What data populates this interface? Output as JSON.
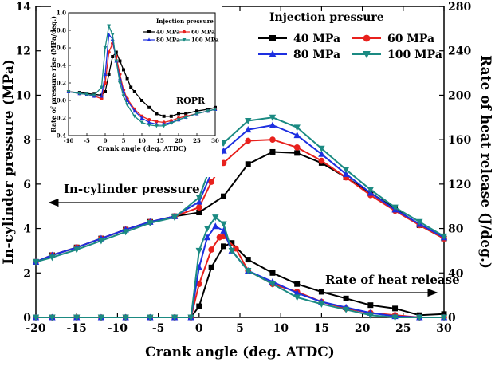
{
  "chart_data": [
    {
      "type": "line",
      "xlabel": "Crank angle (deg. ATDC)",
      "ylabel_left": "In-cylinder pressure (MPa)",
      "ylabel_right": "Rate of heat release (J/deg.)",
      "xlim": [
        -20,
        30
      ],
      "ylim_left": [
        0,
        14
      ],
      "ylim_right": [
        0,
        280
      ],
      "xticks": [
        "-20",
        "-15",
        "-10",
        "-5",
        "0",
        "5",
        "10",
        "15",
        "20",
        "25",
        "30"
      ],
      "yticks_left": [
        "0",
        "2",
        "4",
        "6",
        "8",
        "10",
        "12",
        "14"
      ],
      "yticks_right": [
        "0",
        "40",
        "80",
        "120",
        "160",
        "200",
        "240",
        "280"
      ],
      "legend_title": "Injection pressure",
      "legend_position": "top-right",
      "annotations": {
        "pressure": "In-cylinder pressure",
        "hrr": "Rate of heat release"
      },
      "grid": false,
      "pressure_series": [
        {
          "name": "40 MPa",
          "color": "#000000",
          "marker": "square",
          "x": [
            -20,
            -18,
            -15,
            -12,
            -9,
            -6,
            -3,
            0,
            3,
            6,
            9,
            12,
            15,
            18,
            21,
            24,
            27,
            30
          ],
          "y": [
            2.5,
            2.8,
            3.15,
            3.55,
            3.95,
            4.3,
            4.55,
            4.72,
            5.45,
            6.9,
            7.45,
            7.4,
            6.95,
            6.3,
            5.6,
            4.9,
            4.15,
            3.55
          ]
        },
        {
          "name": "60 MPa",
          "color": "#e8211d",
          "marker": "circle",
          "x": [
            -20,
            -18,
            -15,
            -12,
            -9,
            -6,
            -3,
            0,
            1.5,
            3,
            6,
            9,
            12,
            15,
            18,
            21,
            24,
            27,
            30
          ],
          "y": [
            2.5,
            2.8,
            3.15,
            3.55,
            3.95,
            4.3,
            4.55,
            4.95,
            6.1,
            6.95,
            7.95,
            8.0,
            7.65,
            7.05,
            6.3,
            5.5,
            4.8,
            4.15,
            3.55
          ]
        },
        {
          "name": "80 MPa",
          "color": "#1d2fe0",
          "marker": "triangle-up",
          "x": [
            -20,
            -18,
            -15,
            -12,
            -9,
            -6,
            -3,
            0,
            1.5,
            3,
            6,
            9,
            12,
            15,
            18,
            21,
            24,
            27,
            30
          ],
          "y": [
            2.5,
            2.8,
            3.15,
            3.55,
            3.95,
            4.3,
            4.55,
            5.2,
            6.5,
            7.5,
            8.45,
            8.65,
            8.2,
            7.35,
            6.45,
            5.6,
            4.85,
            4.2,
            3.6
          ]
        },
        {
          "name": "100 MPa",
          "color": "#1b8a82",
          "marker": "triangle-down",
          "x": [
            -20,
            -18,
            -15,
            -12,
            -9,
            -6,
            -3,
            0,
            1.5,
            3,
            6,
            9,
            12,
            15,
            18,
            21,
            24,
            27,
            30
          ],
          "y": [
            2.5,
            2.7,
            3.05,
            3.45,
            3.85,
            4.25,
            4.5,
            5.4,
            6.9,
            7.85,
            8.85,
            9.0,
            8.55,
            7.6,
            6.65,
            5.75,
            4.95,
            4.3,
            3.65
          ]
        }
      ],
      "hrr_series": [
        {
          "name": "40 MPa",
          "color": "#000000",
          "marker": "square",
          "x": [
            -20,
            -18,
            -15,
            -12,
            -9,
            -6,
            -3,
            -1,
            0,
            1.5,
            3,
            4,
            6,
            9,
            12,
            15,
            18,
            21,
            24,
            27,
            30
          ],
          "y": [
            0,
            0,
            0,
            0,
            0,
            0,
            0,
            0,
            10,
            45,
            64,
            67,
            52,
            40,
            30,
            23,
            17,
            11,
            8,
            2,
            3
          ]
        },
        {
          "name": "60 MPa",
          "color": "#e8211d",
          "marker": "circle",
          "x": [
            -20,
            -18,
            -15,
            -12,
            -9,
            -6,
            -3,
            -1,
            0,
            1.5,
            2.5,
            3,
            4.5,
            6,
            9,
            12,
            15,
            18,
            21,
            24,
            27,
            30
          ],
          "y": [
            0,
            0,
            0,
            0,
            0,
            0,
            0,
            0,
            30,
            61,
            72,
            73,
            62,
            42,
            30,
            23,
            14,
            8,
            4,
            2,
            0,
            0
          ]
        },
        {
          "name": "80 MPa",
          "color": "#1d2fe0",
          "marker": "triangle-up",
          "x": [
            -20,
            -18,
            -15,
            -12,
            -9,
            -6,
            -3,
            -1,
            0,
            1,
            2,
            3,
            4,
            6,
            9,
            12,
            15,
            18,
            21,
            24,
            27,
            30
          ],
          "y": [
            0,
            0,
            0,
            0,
            0,
            0,
            0,
            0,
            45,
            72,
            82,
            78,
            60,
            42,
            32,
            22,
            14,
            9,
            4,
            1,
            0,
            0
          ]
        },
        {
          "name": "100 MPa",
          "color": "#1b8a82",
          "marker": "triangle-down",
          "x": [
            -20,
            -18,
            -15,
            -12,
            -9,
            -6,
            -3,
            -1,
            0,
            1,
            2,
            3,
            4,
            6,
            9,
            12,
            15,
            18,
            21,
            24,
            27,
            30
          ],
          "y": [
            0,
            0,
            0,
            0,
            0,
            0,
            0,
            0,
            60,
            80,
            90,
            84,
            60,
            42,
            30,
            18,
            12,
            7,
            2,
            0,
            0,
            0
          ]
        }
      ]
    },
    {
      "type": "line",
      "name": "inset",
      "xlabel": "Crank angle (deg. ATDC)",
      "ylabel": "Rate of pressure rise (MPa/deg.)",
      "annotation": "ROPR",
      "legend_title": "Injection pressure",
      "xlim": [
        -10,
        30
      ],
      "ylim": [
        -0.4,
        1.0
      ],
      "xticks": [
        "-10",
        "-5",
        "0",
        "5",
        "10",
        "15",
        "20",
        "25",
        "30"
      ],
      "yticks": [
        "-0.4",
        "-0.2",
        "0.0",
        "0.2",
        "0.4",
        "0.6",
        "0.8",
        "1.0"
      ],
      "series": [
        {
          "name": "40 MPa",
          "color": "#000000",
          "marker": "square",
          "x": [
            -10,
            -7,
            -5,
            -3,
            -1,
            0,
            1,
            2,
            3,
            4,
            5,
            6,
            7,
            8,
            10,
            12,
            14,
            16,
            18,
            20,
            22,
            25,
            28,
            30
          ],
          "y": [
            0.1,
            0.09,
            0.08,
            0.07,
            0.06,
            0.1,
            0.3,
            0.5,
            0.55,
            0.45,
            0.35,
            0.25,
            0.15,
            0.1,
            0.0,
            -0.08,
            -0.15,
            -0.18,
            -0.18,
            -0.15,
            -0.15,
            -0.12,
            -0.1,
            -0.08
          ]
        },
        {
          "name": "60 MPa",
          "color": "#e8211d",
          "marker": "circle",
          "x": [
            -10,
            -7,
            -5,
            -3,
            -1,
            0,
            1,
            2,
            3,
            4,
            5,
            6,
            8,
            10,
            12,
            14,
            16,
            18,
            20,
            22,
            25,
            28,
            30
          ],
          "y": [
            0.1,
            0.08,
            0.07,
            0.05,
            0.02,
            0.2,
            0.55,
            0.65,
            0.5,
            0.3,
            0.12,
            0.02,
            -0.1,
            -0.18,
            -0.22,
            -0.24,
            -0.25,
            -0.23,
            -0.2,
            -0.18,
            -0.15,
            -0.12,
            -0.1
          ]
        },
        {
          "name": "80 MPa",
          "color": "#1d2fe0",
          "marker": "triangle-up",
          "x": [
            -10,
            -7,
            -5,
            -3,
            -1,
            0,
            1,
            2,
            3,
            4,
            5,
            6,
            8,
            10,
            12,
            14,
            16,
            18,
            20,
            22,
            25,
            28,
            30
          ],
          "y": [
            0.1,
            0.08,
            0.07,
            0.05,
            0.05,
            0.3,
            0.75,
            0.7,
            0.45,
            0.25,
            0.1,
            0.0,
            -0.12,
            -0.2,
            -0.25,
            -0.27,
            -0.27,
            -0.25,
            -0.22,
            -0.19,
            -0.15,
            -0.12,
            -0.1
          ]
        },
        {
          "name": "100 MPa",
          "color": "#1b8a82",
          "marker": "triangle-down",
          "x": [
            -10,
            -7,
            -5,
            -3,
            -1,
            0,
            1,
            2,
            3,
            4,
            5,
            6,
            8,
            10,
            12,
            14,
            16,
            18,
            20,
            22,
            25,
            28,
            30
          ],
          "y": [
            0.1,
            0.08,
            0.07,
            0.06,
            0.15,
            0.6,
            0.85,
            0.75,
            0.45,
            0.2,
            0.05,
            -0.05,
            -0.18,
            -0.25,
            -0.28,
            -0.29,
            -0.29,
            -0.26,
            -0.22,
            -0.19,
            -0.15,
            -0.12,
            -0.1
          ]
        }
      ]
    }
  ]
}
